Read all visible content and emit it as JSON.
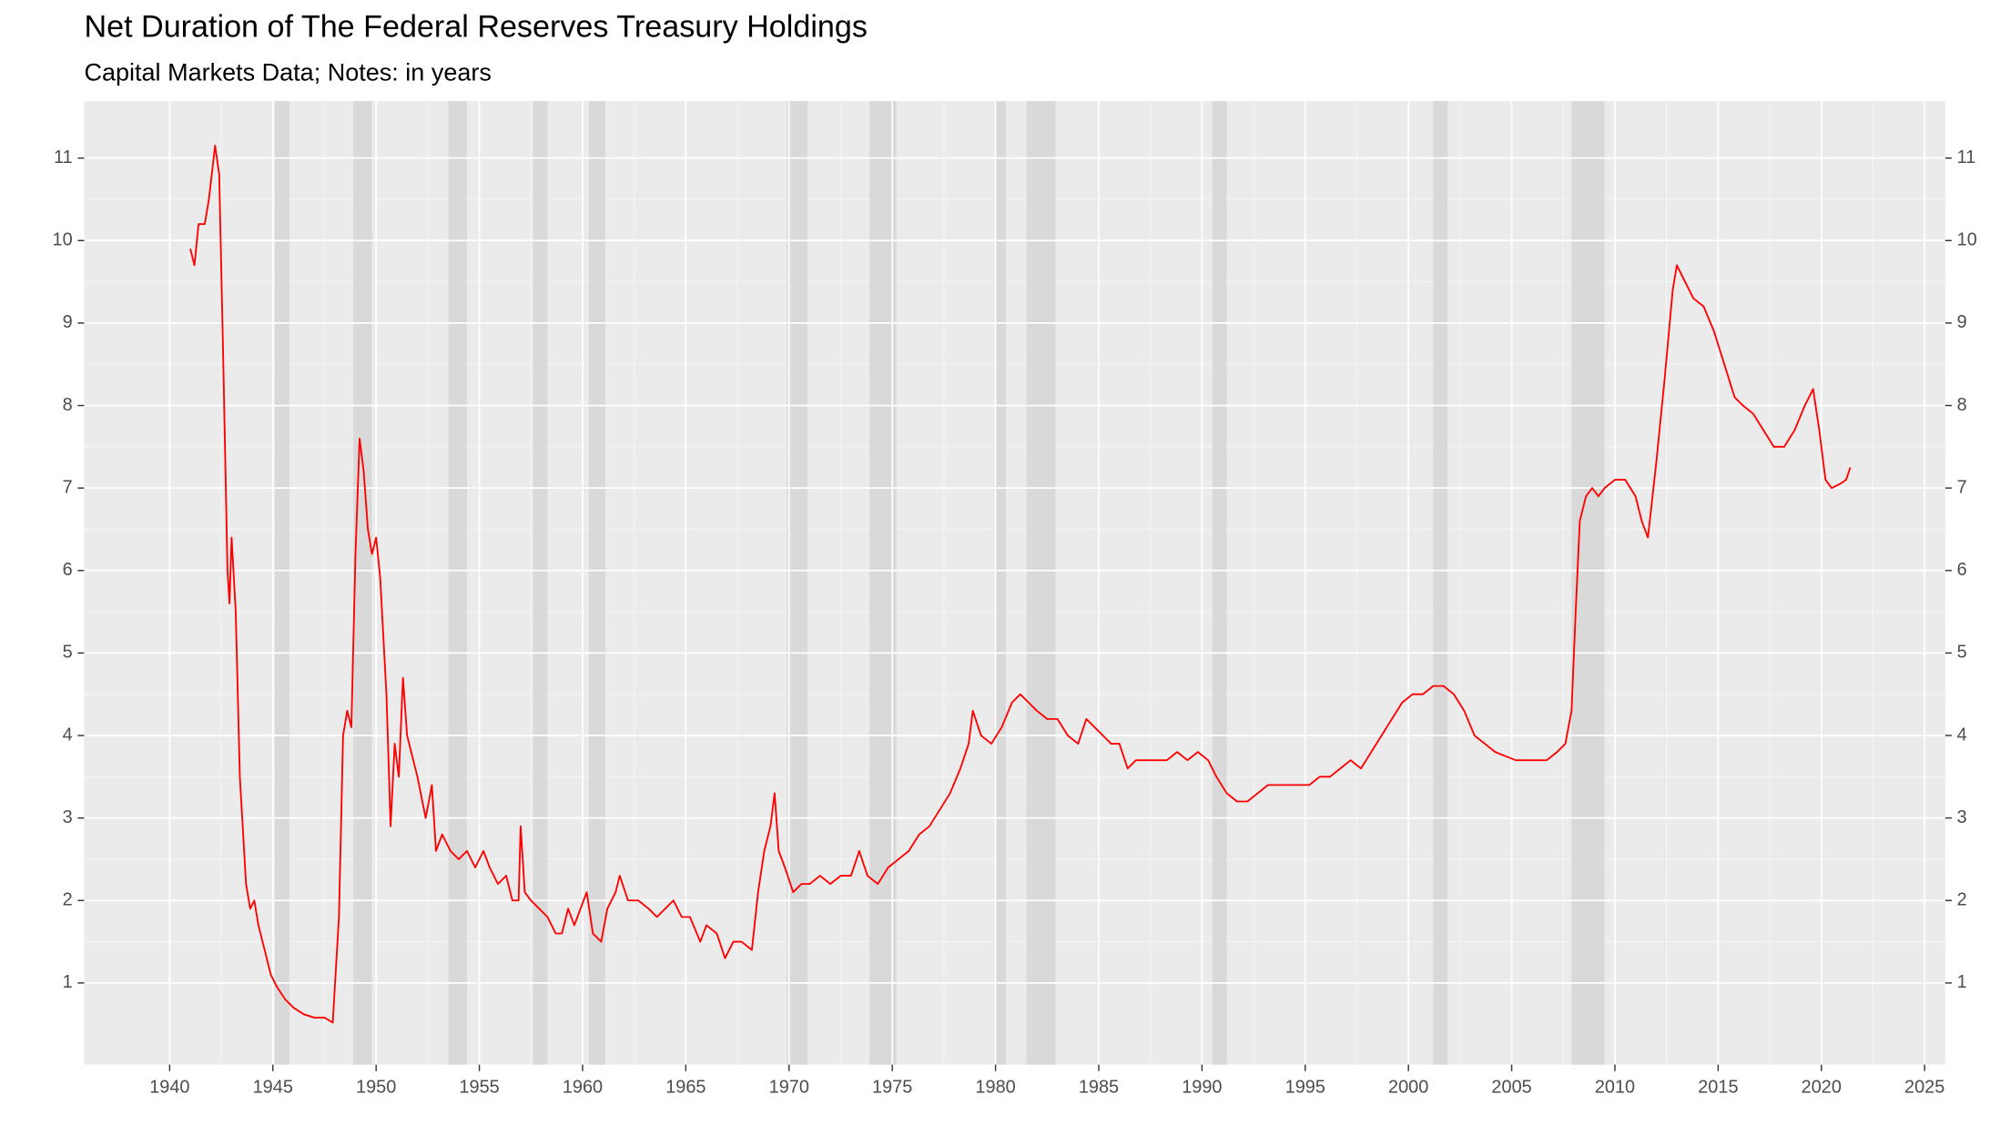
{
  "chart_data": {
    "type": "line",
    "title": "Net Duration of The Federal Reserves Treasury Holdings",
    "subtitle": "Capital Markets Data; Notes: in years",
    "color": "#ff0000",
    "x": [
      1941.0,
      1941.2,
      1941.4,
      1941.7,
      1941.9,
      1942.2,
      1942.4,
      1942.6,
      1942.8,
      1942.9,
      1943.0,
      1943.2,
      1943.4,
      1943.7,
      1943.9,
      1944.1,
      1944.3,
      1944.6,
      1944.9,
      1945.2,
      1945.6,
      1946.0,
      1946.5,
      1947.0,
      1947.5,
      1947.9,
      1948.2,
      1948.4,
      1948.6,
      1948.8,
      1949.0,
      1949.2,
      1949.4,
      1949.6,
      1949.8,
      1950.0,
      1950.2,
      1950.5,
      1950.7,
      1950.9,
      1951.1,
      1951.3,
      1951.5,
      1951.7,
      1952.0,
      1952.4,
      1952.7,
      1952.9,
      1953.2,
      1953.6,
      1954.0,
      1954.4,
      1954.8,
      1955.2,
      1955.5,
      1955.9,
      1956.3,
      1956.6,
      1956.9,
      1957.0,
      1957.2,
      1957.5,
      1957.9,
      1958.3,
      1958.7,
      1959.0,
      1959.3,
      1959.6,
      1959.9,
      1960.2,
      1960.5,
      1960.9,
      1961.2,
      1961.6,
      1961.8,
      1962.2,
      1962.7,
      1963.2,
      1963.6,
      1964.0,
      1964.4,
      1964.8,
      1965.2,
      1965.7,
      1966.0,
      1966.5,
      1966.9,
      1967.3,
      1967.7,
      1968.2,
      1968.5,
      1968.8,
      1969.1,
      1969.3,
      1969.5,
      1969.8,
      1970.2,
      1970.6,
      1971.0,
      1971.5,
      1972.0,
      1972.5,
      1973.0,
      1973.4,
      1973.8,
      1974.3,
      1974.8,
      1975.3,
      1975.8,
      1976.3,
      1976.8,
      1977.3,
      1977.8,
      1978.3,
      1978.7,
      1978.9,
      1979.3,
      1979.8,
      1980.3,
      1980.8,
      1981.2,
      1981.6,
      1982.0,
      1982.5,
      1983.0,
      1983.5,
      1984.0,
      1984.4,
      1984.8,
      1985.2,
      1985.6,
      1986.0,
      1986.4,
      1986.8,
      1987.3,
      1987.8,
      1988.3,
      1988.8,
      1989.3,
      1989.8,
      1990.3,
      1990.7,
      1991.2,
      1991.7,
      1992.2,
      1992.7,
      1993.2,
      1993.7,
      1994.2,
      1994.7,
      1995.2,
      1995.7,
      1996.2,
      1996.7,
      1997.2,
      1997.7,
      1998.2,
      1998.7,
      1999.2,
      1999.7,
      2000.2,
      2000.7,
      2001.2,
      2001.7,
      2002.2,
      2002.7,
      2003.2,
      2003.7,
      2004.2,
      2004.7,
      2005.2,
      2005.7,
      2006.2,
      2006.7,
      2007.2,
      2007.6,
      2007.9,
      2008.1,
      2008.3,
      2008.6,
      2008.9,
      2009.2,
      2009.5,
      2010.0,
      2010.5,
      2011.0,
      2011.3,
      2011.6,
      2012.0,
      2012.4,
      2012.8,
      2013.0,
      2013.4,
      2013.8,
      2014.3,
      2014.8,
      2015.3,
      2015.8,
      2016.2,
      2016.7,
      2017.2,
      2017.7,
      2018.2,
      2018.7,
      2019.2,
      2019.6,
      2019.9,
      2020.2,
      2020.5,
      2020.9,
      2021.2,
      2021.4
    ],
    "values": [
      9.9,
      9.7,
      10.2,
      10.2,
      10.5,
      11.15,
      10.8,
      8.5,
      6.0,
      5.6,
      6.4,
      5.5,
      3.5,
      2.2,
      1.9,
      2.0,
      1.7,
      1.4,
      1.1,
      0.95,
      0.8,
      0.7,
      0.62,
      0.58,
      0.58,
      0.52,
      1.8,
      4.0,
      4.3,
      4.1,
      6.2,
      7.6,
      7.2,
      6.5,
      6.2,
      6.4,
      5.9,
      4.5,
      2.9,
      3.9,
      3.5,
      4.7,
      4.0,
      3.8,
      3.5,
      3.0,
      3.4,
      2.6,
      2.8,
      2.6,
      2.5,
      2.6,
      2.4,
      2.6,
      2.4,
      2.2,
      2.3,
      2.0,
      2.0,
      2.9,
      2.1,
      2.0,
      1.9,
      1.8,
      1.6,
      1.6,
      1.9,
      1.7,
      1.9,
      2.1,
      1.6,
      1.5,
      1.9,
      2.1,
      2.3,
      2.0,
      2.0,
      1.9,
      1.8,
      1.9,
      2.0,
      1.8,
      1.8,
      1.5,
      1.7,
      1.6,
      1.3,
      1.5,
      1.5,
      1.4,
      2.1,
      2.6,
      2.9,
      3.3,
      2.6,
      2.4,
      2.1,
      2.2,
      2.2,
      2.3,
      2.2,
      2.3,
      2.3,
      2.6,
      2.3,
      2.2,
      2.4,
      2.5,
      2.6,
      2.8,
      2.9,
      3.1,
      3.3,
      3.6,
      3.9,
      4.3,
      4.0,
      3.9,
      4.1,
      4.4,
      4.5,
      4.4,
      4.3,
      4.2,
      4.2,
      4.0,
      3.9,
      4.2,
      4.1,
      4.0,
      3.9,
      3.9,
      3.6,
      3.7,
      3.7,
      3.7,
      3.7,
      3.8,
      3.7,
      3.8,
      3.7,
      3.5,
      3.3,
      3.2,
      3.2,
      3.3,
      3.4,
      3.4,
      3.4,
      3.4,
      3.4,
      3.5,
      3.5,
      3.6,
      3.7,
      3.6,
      3.8,
      4.0,
      4.2,
      4.4,
      4.5,
      4.5,
      4.6,
      4.6,
      4.5,
      4.3,
      4.0,
      3.9,
      3.8,
      3.75,
      3.7,
      3.7,
      3.7,
      3.7,
      3.8,
      3.9,
      4.3,
      5.5,
      6.6,
      6.9,
      7.0,
      6.9,
      7.0,
      7.1,
      7.1,
      6.9,
      6.6,
      6.4,
      7.3,
      8.3,
      9.4,
      9.7,
      9.5,
      9.3,
      9.2,
      8.9,
      8.5,
      8.1,
      8.0,
      7.9,
      7.7,
      7.5,
      7.5,
      7.7,
      8.0,
      8.2,
      7.7,
      7.1,
      7.0,
      7.05,
      7.1,
      7.25
    ],
    "shaded_regions": [
      {
        "start": 1945.1,
        "end": 1945.8
      },
      {
        "start": 1948.9,
        "end": 1949.8
      },
      {
        "start": 1953.5,
        "end": 1954.4
      },
      {
        "start": 1957.6,
        "end": 1958.3
      },
      {
        "start": 1960.3,
        "end": 1961.1
      },
      {
        "start": 1969.9,
        "end": 1970.9
      },
      {
        "start": 1973.9,
        "end": 1975.2
      },
      {
        "start": 1980.0,
        "end": 1980.5
      },
      {
        "start": 1981.5,
        "end": 1982.9
      },
      {
        "start": 1990.5,
        "end": 1991.2
      },
      {
        "start": 2001.2,
        "end": 2001.9
      },
      {
        "start": 2007.9,
        "end": 2009.5
      }
    ],
    "shade_color": "#d9d9d9",
    "xlim": [
      1935.86,
      2026.0
    ],
    "ylim": [
      0.01,
      11.69
    ],
    "xticks": [
      1940,
      1945,
      1950,
      1955,
      1960,
      1965,
      1970,
      1975,
      1980,
      1985,
      1990,
      1995,
      2000,
      2005,
      2010,
      2015,
      2020,
      2025
    ],
    "yticks": [
      1,
      2,
      3,
      4,
      5,
      6,
      7,
      8,
      9,
      10,
      11
    ],
    "secondary_y_axis": true,
    "grid": true
  }
}
